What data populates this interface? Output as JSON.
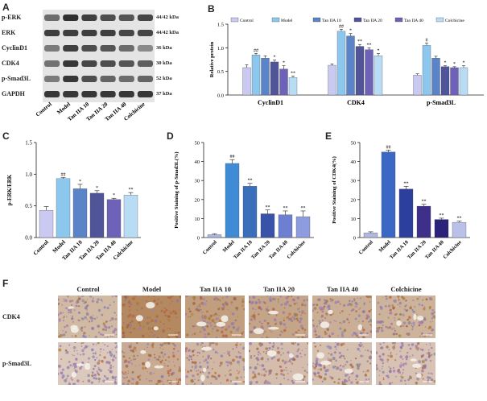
{
  "panels": {
    "a": "A",
    "b": "B",
    "c": "C",
    "d": "D",
    "e": "E",
    "f": "F"
  },
  "groups": [
    "Control",
    "Model",
    "Tan IIA 10",
    "Tan IIA 20",
    "Tan IIA 40",
    "Colchicine"
  ],
  "colors": {
    "Control": "#c9c9f2",
    "Model": "#8cc8ee",
    "Tan IIA 10": "#5b83c8",
    "Tan IIA 20": "#4f5598",
    "Tan IIA 40": "#6e62b8",
    "Colchicine": "#b7dcf4",
    "d_Control": "#a8b6df",
    "d_Model": "#3f8bd6",
    "d_Tan IIA 10": "#3a6fbc",
    "d_Tan IIA 20": "#3953a8",
    "d_Tan IIA 40": "#6c7fd0",
    "d_Colchicine": "#8d9cde",
    "e_Control": "#b1b7e2",
    "e_Model": "#3a68c4",
    "e_Tan IIA 10": "#2c3f9c",
    "e_Tan IIA 20": "#3d2f8a",
    "e_Tan IIA 40": "#2b227a",
    "e_Colchicine": "#b9c0ea"
  },
  "blot": {
    "proteins": [
      {
        "name": "p-ERK",
        "kda": "44/42 kDa"
      },
      {
        "name": "ERK",
        "kda": "44/42 kDa"
      },
      {
        "name": "CyclinD1",
        "kda": "36 kDa"
      },
      {
        "name": "CDK4",
        "kda": "30 kDa"
      },
      {
        "name": "p-Smad3L",
        "kda": "52 kDa"
      },
      {
        "name": "GAPDH",
        "kda": "37 kDa"
      }
    ]
  },
  "chart_data": [
    {
      "panel": "B",
      "type": "bar",
      "ylabel": "Relative protein",
      "ylim": [
        0,
        1.5
      ],
      "yticks": [
        "0.0",
        "0.5",
        "1.0",
        "1.5"
      ],
      "categories": [
        "CyclinD1",
        "CDK4",
        "p-Smad3L"
      ],
      "legend": [
        "Control",
        "Model",
        "Tan IIA 10",
        "Tan IIA 20",
        "Tan IIA 40",
        "Colchicine"
      ],
      "legend_position": "top",
      "series": [
        {
          "name": "Control",
          "values": [
            0.58,
            0.63,
            0.42
          ]
        },
        {
          "name": "Model",
          "values": [
            0.85,
            1.35,
            1.05
          ]
        },
        {
          "name": "Tan IIA 10",
          "values": [
            0.78,
            1.25,
            0.78
          ]
        },
        {
          "name": "Tan IIA 20",
          "values": [
            0.7,
            1.03,
            0.6
          ]
        },
        {
          "name": "Tan IIA 40",
          "values": [
            0.55,
            0.96,
            0.58
          ]
        },
        {
          "name": "Colchicine",
          "values": [
            0.37,
            0.83,
            0.58
          ]
        }
      ],
      "errors": [
        [
          0.06,
          0.03,
          0.03
        ],
        [
          0.03,
          0.04,
          0.05
        ],
        [
          0.05,
          0.05,
          0.04
        ],
        [
          0.04,
          0.04,
          0.02
        ],
        [
          0.07,
          0.04,
          0.02
        ],
        [
          0.03,
          0.05,
          0.04
        ]
      ],
      "annotations": [
        [
          "",
          "",
          ""
        ],
        [
          "##",
          "##",
          "#"
        ],
        [
          "",
          "*",
          ""
        ],
        [
          "*",
          "**",
          "*"
        ],
        [
          "*",
          "**",
          "*"
        ],
        [
          "**",
          "*",
          "*"
        ]
      ]
    },
    {
      "panel": "C",
      "type": "bar",
      "ylabel": "p-ERK/ERK",
      "ylim": [
        0,
        1.5
      ],
      "yticks": [
        "0.0",
        "0.5",
        "1.0",
        "1.5"
      ],
      "categories": [
        "Control",
        "Model",
        "Tan IIA 10",
        "Tan IIA 20",
        "Tan IIA 40",
        "Colchicine"
      ],
      "values": [
        0.43,
        0.93,
        0.77,
        0.7,
        0.6,
        0.67
      ],
      "errors": [
        0.06,
        0.02,
        0.07,
        0.04,
        0.02,
        0.04
      ],
      "annotations": [
        "",
        "##",
        "*",
        "*",
        "*",
        "**"
      ]
    },
    {
      "panel": "D",
      "type": "bar",
      "ylabel": "Positive Staining of p-Smad3L(%)",
      "ylim": [
        0,
        50
      ],
      "yticks": [
        "0",
        "10",
        "20",
        "30",
        "40",
        "50"
      ],
      "categories": [
        "Control",
        "Model",
        "Tan IIA 10",
        "Tan IIA 20",
        "Tan IIA 40",
        "Colchicine"
      ],
      "values": [
        1.5,
        39,
        27,
        12.5,
        12,
        11
      ],
      "errors": [
        0.5,
        2,
        1.5,
        2,
        2,
        3
      ],
      "annotations": [
        "",
        "##",
        "**",
        "**",
        "**",
        "**"
      ]
    },
    {
      "panel": "E",
      "type": "bar",
      "ylabel": "Positive Staining of CDK4(%)",
      "ylim": [
        0,
        50
      ],
      "yticks": [
        "0",
        "10",
        "20",
        "30",
        "40",
        "50"
      ],
      "categories": [
        "Control",
        "Model",
        "Tan IIA 10",
        "Tan IIA 20",
        "Tan IIA 40",
        "Colchicine"
      ],
      "values": [
        2.5,
        45,
        25.5,
        16.5,
        9.5,
        8
      ],
      "errors": [
        0.5,
        1,
        1.5,
        1,
        0.7,
        0.6
      ],
      "annotations": [
        "",
        "##",
        "**",
        "**",
        "**",
        "**"
      ]
    }
  ],
  "micrographs": {
    "columns": [
      "Control",
      "Model",
      "Tan IIA 10",
      "Tan IIA 20",
      "Tan IIA 40",
      "Colchicine"
    ],
    "rows": [
      "CDK4",
      "p-Smad3L"
    ]
  }
}
